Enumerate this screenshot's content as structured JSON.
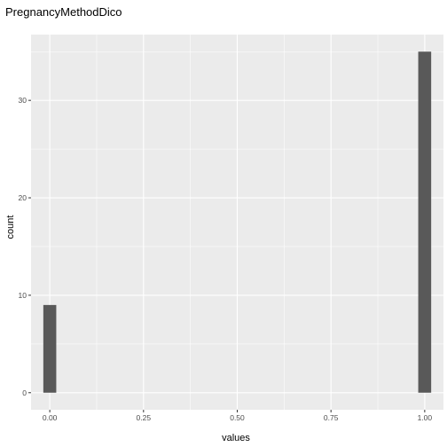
{
  "chart_data": {
    "type": "bar",
    "title": "PregnancyMethodDico",
    "xlabel": "values",
    "ylabel": "count",
    "x": [
      0.0,
      1.0
    ],
    "values": [
      9,
      35
    ],
    "bar_width": 0.0345,
    "xlim": [
      -0.05,
      1.05
    ],
    "ylim": [
      -1.75,
      36.75
    ],
    "xticks": [
      0.0,
      0.25,
      0.5,
      0.75,
      1.0
    ],
    "xtick_labels": [
      "0.00",
      "0.25",
      "0.50",
      "0.75",
      "1.00"
    ],
    "yticks": [
      0,
      10,
      20,
      30
    ],
    "ytick_labels": [
      "0",
      "10",
      "20",
      "30"
    ],
    "grid": true,
    "colors": {
      "panel": "#ebebeb",
      "grid_major": "#ffffff",
      "bar": "#595959",
      "tick": "#333333"
    }
  }
}
